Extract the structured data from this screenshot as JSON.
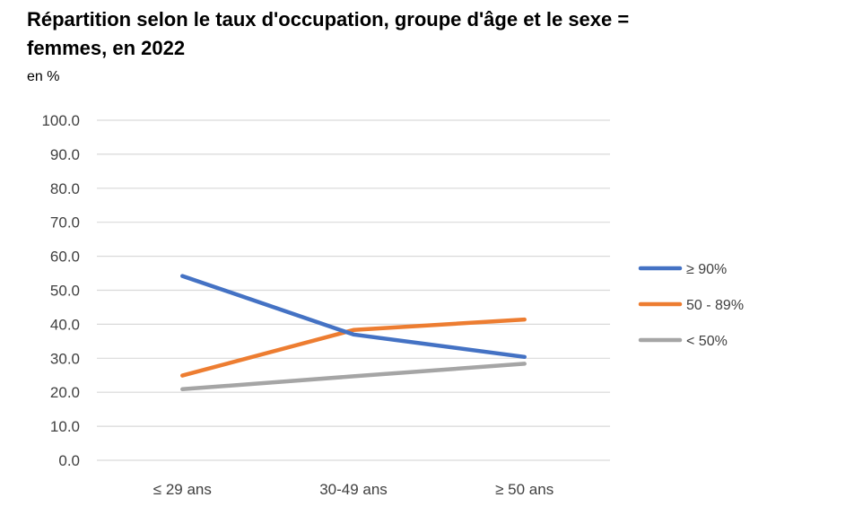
{
  "chart_data": {
    "type": "line",
    "title": "Répartition selon le taux d'occupation, groupe d'âge et le sexe = femmes, en 2022",
    "subtitle": "en %",
    "xlabel": "",
    "ylabel": "",
    "categories": [
      "≤ 29 ans",
      "30-49 ans",
      "≥ 50 ans"
    ],
    "ylim": [
      0,
      100
    ],
    "yticks": [
      "0.0",
      "10.0",
      "20.0",
      "30.0",
      "40.0",
      "50.0",
      "60.0",
      "70.0",
      "80.0",
      "90.0",
      "100.0"
    ],
    "grid": true,
    "legend_position": "right",
    "series": [
      {
        "name": "≥ 90%",
        "color": "#4472C4",
        "values": [
          54.2,
          37.0,
          30.4
        ]
      },
      {
        "name": "50 - 89%",
        "color": "#ED7D31",
        "values": [
          24.9,
          38.3,
          41.4
        ]
      },
      {
        "name": "< 50%",
        "color": "#A5A5A5",
        "values": [
          20.9,
          24.7,
          28.4
        ]
      }
    ]
  }
}
